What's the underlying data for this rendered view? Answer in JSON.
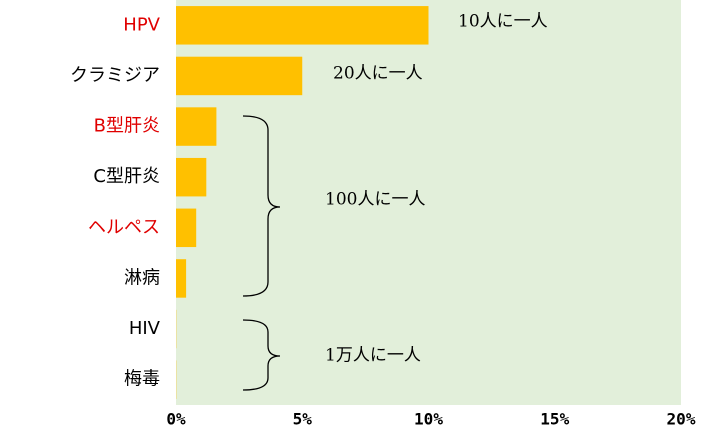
{
  "chart_data": {
    "type": "barh",
    "categories": [
      "HPV",
      "クラミジア",
      "B型肝炎",
      "C型肝炎",
      "ヘルペス",
      "淋病",
      "HIV",
      "梅毒"
    ],
    "category_colors": [
      "#e00000",
      "#000000",
      "#e00000",
      "#000000",
      "#e00000",
      "#000000",
      "#000000",
      "#000000"
    ],
    "values": [
      10,
      5,
      1.6,
      1.2,
      0.8,
      0.4,
      0.01,
      0.01
    ],
    "color": "#ffc000",
    "background": "#e2efda",
    "xlim": [
      0,
      20
    ],
    "xticks": [
      {
        "value": 0,
        "label": "0%"
      },
      {
        "value": 5,
        "label": "5%"
      },
      {
        "value": 10,
        "label": "10%"
      },
      {
        "value": 15,
        "label": "15%"
      },
      {
        "value": 20,
        "label": "20%"
      }
    ],
    "grid": false,
    "annotations": [
      "10人に一人",
      "20人に一人",
      "100人に一人",
      "1万人に一人"
    ]
  }
}
